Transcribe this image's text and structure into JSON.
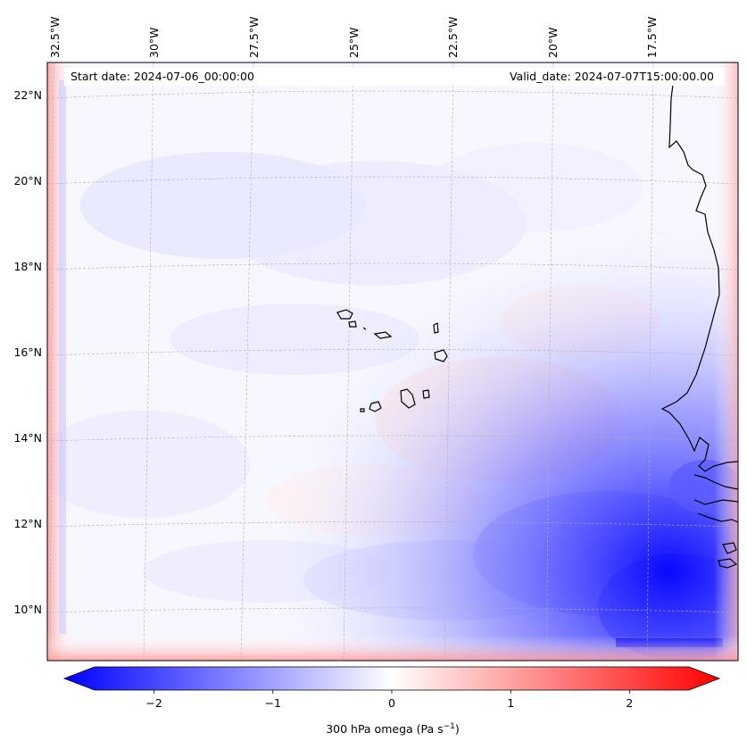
{
  "header": {
    "start_date": "Start date: 2024-07-06_00:00:00",
    "valid_date": "Valid_date: 2024-07-07T15:00:00.00"
  },
  "map": {
    "longitude_labels": [
      "32.5°W",
      "30°W",
      "27.5°W",
      "25°W",
      "22.5°W",
      "20°W",
      "17.5°W"
    ],
    "latitude_labels": [
      "22°N",
      "20°N",
      "18°N",
      "16°N",
      "14°N",
      "12°N",
      "10°N"
    ],
    "field": "300 hPa omega",
    "colors": {
      "negative": "#0000ff",
      "zero": "#ffffff",
      "positive": "#ff0000",
      "coastline": "#000000",
      "gridline": "#b0b0b0"
    }
  },
  "colorbar": {
    "ticks": [
      "−2",
      "−1",
      "0",
      "1",
      "2"
    ],
    "tick_values": [
      -2,
      -1,
      0,
      1,
      2
    ],
    "range": [
      -2.5,
      2.5
    ],
    "label_main": "300 hPa omega (Pa s",
    "label_sup": "−1",
    "label_end": ")"
  }
}
